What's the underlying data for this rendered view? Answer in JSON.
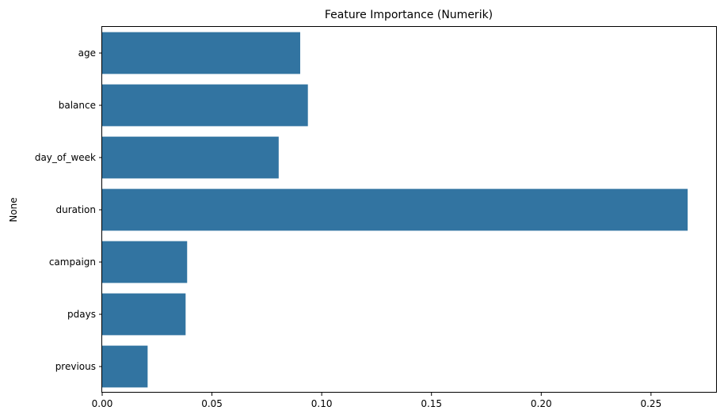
{
  "chart_data": {
    "type": "bar",
    "orientation": "horizontal",
    "title": "Feature Importance (Numerik)",
    "xlabel": "",
    "ylabel": "None",
    "categories": [
      "age",
      "balance",
      "day_of_week",
      "duration",
      "campaign",
      "pdays",
      "previous"
    ],
    "values": [
      0.0902,
      0.0937,
      0.0804,
      0.2667,
      0.0387,
      0.038,
      0.0207
    ],
    "xlim": [
      0,
      0.28
    ],
    "xticks": [
      0.0,
      0.05,
      0.1,
      0.15,
      0.2,
      0.25
    ],
    "xtick_labels": [
      "0.00",
      "0.05",
      "0.10",
      "0.15",
      "0.20",
      "0.25"
    ],
    "bar_color": "#3274a1",
    "grid": false,
    "legend": "none"
  }
}
